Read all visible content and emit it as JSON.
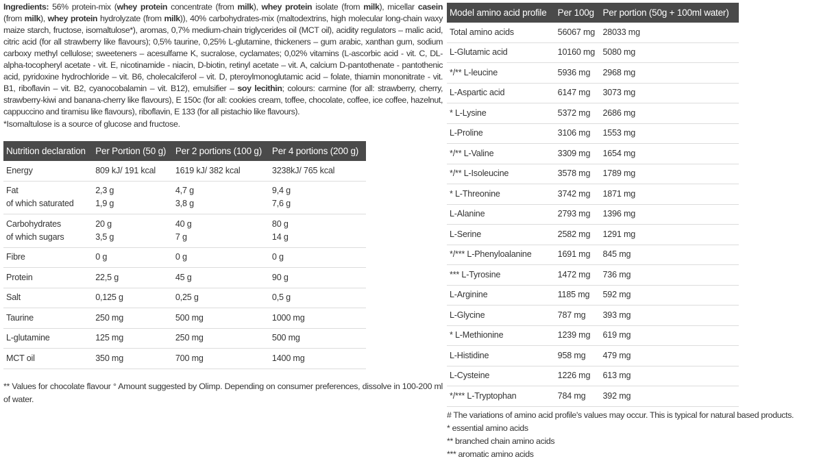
{
  "ingredients": [
    {
      "t": "Ingredients:",
      "b": true
    },
    {
      "t": " 56% protein-mix (",
      "b": false
    },
    {
      "t": "whey protein",
      "b": true
    },
    {
      "t": " concentrate (from ",
      "b": false
    },
    {
      "t": "milk",
      "b": true
    },
    {
      "t": "), ",
      "b": false
    },
    {
      "t": "whey protein",
      "b": true
    },
    {
      "t": " isolate (from ",
      "b": false
    },
    {
      "t": "milk",
      "b": true
    },
    {
      "t": "), micellar ",
      "b": false
    },
    {
      "t": "casein",
      "b": true
    },
    {
      "t": " (from ",
      "b": false
    },
    {
      "t": "milk",
      "b": true
    },
    {
      "t": "), ",
      "b": false
    },
    {
      "t": "whey protein",
      "b": true
    },
    {
      "t": " hydrolyzate (from ",
      "b": false
    },
    {
      "t": "milk",
      "b": true
    },
    {
      "t": ")), 40% carbohydrates-mix (maltodextrins, high molecular long-chain waxy maize starch, fructose, isomaltulose*), aromas, 0,7% medium-chain triglycerides oil (MCT oil), acidity regulators – malic acid, citric acid (for all strawberry like flavours); 0,5% taurine, 0,25% L-glutamine, thickeners – gum arabic, xanthan gum, sodium carboxy methyl cellulose; sweeteners – acesulfame K, sucralose, cyclamates; 0,02% vitamins (L-ascorbic acid - vit. C, DL-alpha-tocopheryl acetate - vit. E, nicotinamide - niacin, D-biotin, retinyl acetate – vit. A, calcium D-pantothenate - pantothenic acid, pyridoxine hydrochloride – vit. B6, cholecalciferol – vit. D, pteroylmonoglutamic acid – folate, thiamin mononitrate - vit. B1, riboflavin – vit. B2, cyanocobalamin – vit. B12), emulsifier – ",
      "b": false
    },
    {
      "t": "soy lecithin",
      "b": true
    },
    {
      "t": "; colours: carmine (for all: strawberry, cherry, strawberry-kiwi and banana-cherry like flavours), E 150c (for all: cookies cream, toffee, chocolate, coffee, ice coffee, hazelnut, cappuccino and tiramisu like flavours), riboflavin, E 133 (for all pistachio like flavours).",
      "b": false
    }
  ],
  "isomaltulose_note": "*Isomaltulose is a source of glucose and fructose.",
  "nutrition": {
    "headers": [
      "Nutrition declaration",
      "Per Portion (50 g)",
      "Per 2 portions (100 g)",
      "Per 4 portions (200 g)"
    ],
    "rows": [
      [
        [
          "Energy"
        ],
        [
          "809 kJ/ 191 kcal"
        ],
        [
          "1619 kJ/ 382 kcal"
        ],
        [
          "3238kJ/ 765 kcal"
        ]
      ],
      [
        [
          "Fat",
          "of which saturated"
        ],
        [
          "2,3 g",
          "1,9 g"
        ],
        [
          "4,7 g",
          "3,8 g"
        ],
        [
          "9,4 g",
          "7,6 g"
        ]
      ],
      [
        [
          "Carbohydrates",
          "of which sugars"
        ],
        [
          "20 g",
          "3,5 g"
        ],
        [
          "40 g",
          "7 g"
        ],
        [
          "80 g",
          "14 g"
        ]
      ],
      [
        [
          "Fibre"
        ],
        [
          "0 g"
        ],
        [
          "0 g"
        ],
        [
          "0 g"
        ]
      ],
      [
        [
          "Protein"
        ],
        [
          "22,5 g"
        ],
        [
          "45 g"
        ],
        [
          "90 g"
        ]
      ],
      [
        [
          "Salt"
        ],
        [
          "0,125 g"
        ],
        [
          "0,25 g"
        ],
        [
          "0,5 g"
        ]
      ],
      [
        [
          "Taurine"
        ],
        [
          "250 mg"
        ],
        [
          "500 mg"
        ],
        [
          "1000 mg"
        ]
      ],
      [
        [
          "L-glutamine"
        ],
        [
          "125 mg"
        ],
        [
          "250 mg"
        ],
        [
          "500 mg"
        ]
      ],
      [
        [
          "MCT oil"
        ],
        [
          "350 mg"
        ],
        [
          "700 mg"
        ],
        [
          "1400 mg"
        ]
      ]
    ]
  },
  "amino": {
    "headers": [
      "Model amino acid profile",
      "Per 100g",
      "Per portion (50g + 100ml water)"
    ],
    "rows": [
      [
        "Total amino acids",
        "56067 mg",
        "28033 mg"
      ],
      [
        "L-Glutamic acid",
        "10160 mg",
        "5080 mg"
      ],
      [
        "*/** L-leucine",
        "5936 mg",
        "2968 mg"
      ],
      [
        "L-Aspartic acid",
        "6147 mg",
        "3073 mg"
      ],
      [
        "* L-Lysine",
        "5372 mg",
        "2686 mg"
      ],
      [
        "L-Proline",
        "3106 mg",
        "1553 mg"
      ],
      [
        "*/** L-Valine",
        "3309 mg",
        "1654 mg"
      ],
      [
        "*/** L-Isoleucine",
        "3578 mg",
        "1789 mg"
      ],
      [
        "* L-Threonine",
        "3742 mg",
        "1871 mg"
      ],
      [
        "L-Alanine",
        "2793 mg",
        "1396 mg"
      ],
      [
        "L-Serine",
        "2582 mg",
        "1291 mg"
      ],
      [
        "*/*** L-Phenyloalanine",
        "1691 mg",
        "845 mg"
      ],
      [
        "*** L-Tyrosine",
        "1472 mg",
        "736 mg"
      ],
      [
        "L-Arginine",
        "1185 mg",
        "592 mg"
      ],
      [
        "L-Glycine",
        "787 mg",
        "393 mg"
      ],
      [
        "* L-Methionine",
        "1239 mg",
        "619 mg"
      ],
      [
        "L-Histidine",
        "958 mg",
        "479 mg"
      ],
      [
        "L-Cysteine",
        "1226 mg",
        "613 mg"
      ],
      [
        "*/*** L-Tryptophan",
        "784 mg",
        "392 mg"
      ]
    ]
  },
  "footnote_left": "** Values for chocolate flavour ° Amount suggested by Olimp. Depending on consumer preferences, dissolve in 100-200 ml of water.",
  "footnotes_right": [
    "# The variations of amino acid profile's values may occur. This is typical for natural based products.",
    "* essential amino acids",
    "** branched chain amino acids",
    "*** aromatic amino acids"
  ],
  "colors": {
    "header_bg": "#4a4a4a",
    "header_text": "#ffffff",
    "text": "#333333"
  }
}
